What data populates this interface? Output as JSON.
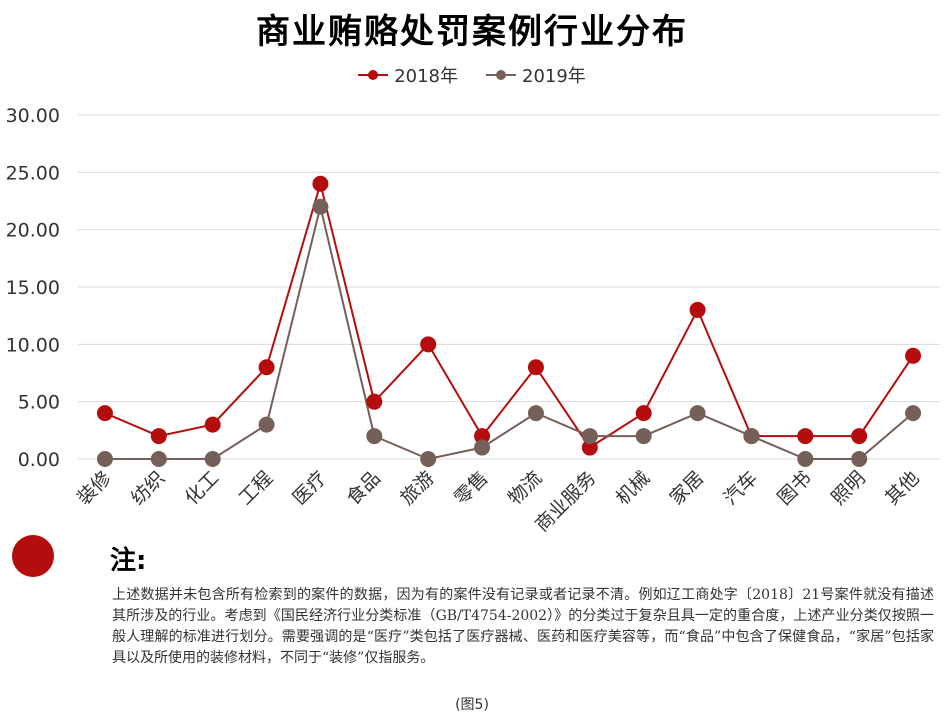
{
  "chart_data": {
    "type": "line",
    "title": "商业贿赂处罚案例行业分布",
    "categories": [
      "装修",
      "纺织",
      "化工",
      "工程",
      "医疗",
      "食品",
      "旅游",
      "零售",
      "物流",
      "商业服务",
      "机械",
      "家居",
      "汽车",
      "图书",
      "照明",
      "其他"
    ],
    "series": [
      {
        "name": "2018年",
        "color": "#b50d0d",
        "values": [
          4,
          2,
          3,
          8,
          24,
          5,
          10,
          2,
          8,
          1,
          4,
          13,
          2,
          2,
          2,
          9
        ]
      },
      {
        "name": "2019年",
        "color": "#756059",
        "values": [
          0,
          0,
          0,
          3,
          22,
          2,
          0,
          1,
          4,
          2,
          2,
          4,
          2,
          0,
          0,
          4
        ]
      }
    ],
    "ylim": [
      0,
      30
    ],
    "yticks": [
      "0.00",
      "5.00",
      "10.00",
      "15.00",
      "20.00",
      "25.00",
      "30.00"
    ],
    "grid": true,
    "legend_position": "top-center",
    "xlabel": "",
    "ylabel": ""
  },
  "note": {
    "heading": "注:",
    "text": "上述数据并未包含所有检索到的案件的数据，因为有的案件没有记录或者记录不清。例如辽工商处字〔2018〕21号案件就没有描述其所涉及的行业。考虑到《国民经济行业分类标准（GB/T4754-2002）》的分类过于复杂且具一定的重合度，上述产业分类仅按照一般人理解的标准进行划分。需要强调的是“医疗”类包括了医疗器械、医药和医疗美容等，而“食品”中包含了保健食品，“家居”包括家具以及所使用的装修材料，不同于“装修”仅指服务。"
  },
  "figure_label": "(图5)"
}
